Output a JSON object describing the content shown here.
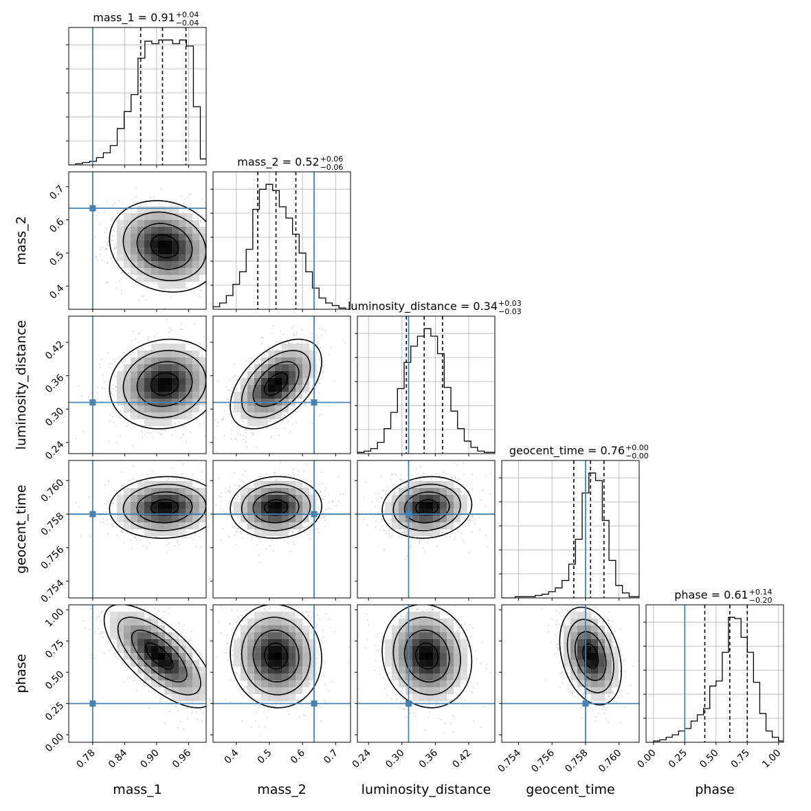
{
  "colors": {
    "truth": "#4682b4",
    "hist": "#000000",
    "grid": "#b0b0b0",
    "contour": "#000000",
    "scatter": "#a0a0a0"
  },
  "parameters": [
    {
      "name": "mass_1",
      "label": "mass_1",
      "title_main": "mass_1 = 0.91",
      "title_up": "+0.04",
      "title_down": "−0.04",
      "range": [
        0.735,
        0.993
      ],
      "ticks": [
        0.78,
        0.84,
        0.9,
        0.96
      ],
      "tick_labels": [
        "0.78",
        "0.84",
        "0.90",
        "0.96"
      ],
      "truth": 0.78,
      "quantiles": [
        0.87,
        0.911,
        0.955
      ]
    },
    {
      "name": "mass_2",
      "label": "mass_2",
      "title_main": "mass_2 = 0.52",
      "title_up": "+0.06",
      "title_down": "−0.06",
      "range": [
        0.33,
        0.745
      ],
      "ticks": [
        0.4,
        0.5,
        0.6,
        0.7
      ],
      "tick_labels": [
        "0.4",
        "0.5",
        "0.6",
        "0.7"
      ],
      "truth": 0.635,
      "quantiles": [
        0.465,
        0.52,
        0.58
      ]
    },
    {
      "name": "luminosity_distance",
      "label": "luminosity_distance",
      "title_main": "luminosity_distance = 0.34",
      "title_up": "+0.03",
      "title_down": "−0.03",
      "range": [
        0.22,
        0.467
      ],
      "ticks": [
        0.24,
        0.3,
        0.36,
        0.42
      ],
      "tick_labels": [
        "0.24",
        "0.30",
        "0.36",
        "0.42"
      ],
      "truth": 0.312,
      "quantiles": [
        0.308,
        0.34,
        0.373
      ]
    },
    {
      "name": "geocent_time",
      "label": "geocent_time",
      "title_main": "geocent_time = 0.76",
      "title_up": "+0.00",
      "title_down": "−0.00",
      "range": [
        0.753,
        0.7612
      ],
      "ticks": [
        0.754,
        0.756,
        0.758,
        0.76
      ],
      "tick_labels": [
        "0.754",
        "0.756",
        "0.758",
        "0.760"
      ],
      "truth": 0.758,
      "quantiles": [
        0.7573,
        0.7583,
        0.7591
      ]
    },
    {
      "name": "phase",
      "label": "phase",
      "title_main": "phase = 0.61",
      "title_up": "+0.14",
      "title_down": "−0.20",
      "range": [
        -0.06,
        1.04
      ],
      "ticks": [
        0.0,
        0.25,
        0.5,
        0.75,
        1.0
      ],
      "tick_labels": [
        "0.00",
        "0.25",
        "0.50",
        "0.75",
        "1.00"
      ],
      "truth": 0.25,
      "quantiles": [
        0.41,
        0.61,
        0.75
      ]
    }
  ],
  "chart_data": {
    "type": "corner",
    "histograms": [
      {
        "param": "mass_1",
        "edges": [
          0.735,
          0.748,
          0.761,
          0.774,
          0.787,
          0.8,
          0.813,
          0.826,
          0.839,
          0.852,
          0.865,
          0.878,
          0.891,
          0.904,
          0.917,
          0.93,
          0.943,
          0.956,
          0.969,
          0.982,
          0.993
        ],
        "counts": [
          0,
          1,
          2,
          3,
          6,
          10,
          16,
          30,
          44,
          58,
          88,
          102,
          100,
          103,
          103,
          100,
          103,
          98,
          48,
          5
        ]
      },
      {
        "param": "mass_2",
        "edges": [
          0.31,
          0.33,
          0.35,
          0.37,
          0.39,
          0.41,
          0.43,
          0.45,
          0.47,
          0.49,
          0.51,
          0.53,
          0.55,
          0.57,
          0.59,
          0.61,
          0.63,
          0.65,
          0.67,
          0.69,
          0.71,
          0.73,
          0.745
        ],
        "counts": [
          0,
          2,
          5,
          11,
          20,
          30,
          48,
          80,
          96,
          100,
          95,
          82,
          73,
          60,
          45,
          30,
          17,
          9,
          5,
          3,
          1,
          0
        ]
      },
      {
        "param": "luminosity_distance",
        "edges": [
          0.22,
          0.232,
          0.244,
          0.256,
          0.268,
          0.28,
          0.292,
          0.304,
          0.316,
          0.328,
          0.34,
          0.352,
          0.364,
          0.376,
          0.388,
          0.4,
          0.412,
          0.424,
          0.436,
          0.448,
          0.467
        ],
        "counts": [
          1,
          2,
          4,
          9,
          20,
          33,
          52,
          73,
          86,
          94,
          100,
          94,
          80,
          53,
          34,
          20,
          10,
          5,
          2,
          1
        ]
      },
      {
        "param": "geocent_time",
        "edges": [
          0.753,
          0.7534,
          0.7538,
          0.7542,
          0.7546,
          0.755,
          0.7554,
          0.7558,
          0.7562,
          0.7566,
          0.757,
          0.7574,
          0.7578,
          0.7582,
          0.7586,
          0.759,
          0.7594,
          0.7598,
          0.7602,
          0.7606,
          0.7612
        ],
        "counts": [
          0,
          0,
          1,
          1,
          1,
          2,
          3,
          5,
          8,
          14,
          27,
          47,
          84,
          100,
          94,
          62,
          30,
          10,
          4,
          1
        ]
      },
      {
        "param": "phase",
        "edges": [
          -0.06,
          0.0,
          0.05,
          0.1,
          0.15,
          0.2,
          0.25,
          0.3,
          0.35,
          0.4,
          0.45,
          0.5,
          0.55,
          0.6,
          0.65,
          0.7,
          0.75,
          0.8,
          0.85,
          0.9,
          0.95,
          1.0,
          1.04
        ],
        "counts": [
          0,
          1,
          2,
          4,
          6,
          9,
          11,
          17,
          22,
          27,
          45,
          49,
          72,
          100,
          99,
          84,
          72,
          48,
          23,
          9,
          4,
          1
        ]
      }
    ],
    "pairs": [
      {
        "x": "mass_1",
        "y": "mass_2",
        "center": [
          0.915,
          0.52
        ],
        "sigma": [
          0.045,
          0.06
        ],
        "rho": -0.15
      },
      {
        "x": "mass_1",
        "y": "luminosity_distance",
        "center": [
          0.915,
          0.345
        ],
        "sigma": [
          0.045,
          0.035
        ],
        "rho": 0.1
      },
      {
        "x": "mass_1",
        "y": "geocent_time",
        "center": [
          0.915,
          0.7584
        ],
        "sigma": [
          0.045,
          0.0008
        ],
        "rho": 0.05
      },
      {
        "x": "mass_1",
        "y": "phase",
        "center": [
          0.905,
          0.63
        ],
        "sigma": [
          0.045,
          0.18
        ],
        "rho": -0.7
      },
      {
        "x": "mass_2",
        "y": "luminosity_distance",
        "center": [
          0.52,
          0.345
        ],
        "sigma": [
          0.06,
          0.035
        ],
        "rho": 0.5
      },
      {
        "x": "mass_2",
        "y": "geocent_time",
        "center": [
          0.52,
          0.7584
        ],
        "sigma": [
          0.06,
          0.0008
        ],
        "rho": 0.05
      },
      {
        "x": "mass_2",
        "y": "phase",
        "center": [
          0.52,
          0.63
        ],
        "sigma": [
          0.06,
          0.18
        ],
        "rho": -0.05
      },
      {
        "x": "luminosity_distance",
        "y": "geocent_time",
        "center": [
          0.345,
          0.7584
        ],
        "sigma": [
          0.035,
          0.0008
        ],
        "rho": 0.1
      },
      {
        "x": "luminosity_distance",
        "y": "phase",
        "center": [
          0.345,
          0.63
        ],
        "sigma": [
          0.035,
          0.18
        ],
        "rho": -0.1
      },
      {
        "x": "geocent_time",
        "y": "phase",
        "center": [
          0.7583,
          0.63
        ],
        "sigma": [
          0.0008,
          0.17
        ],
        "rho": -0.3
      }
    ],
    "contour_levels_sigma": [
      0.5,
      1.0,
      1.5,
      2.0
    ],
    "grid": true
  }
}
